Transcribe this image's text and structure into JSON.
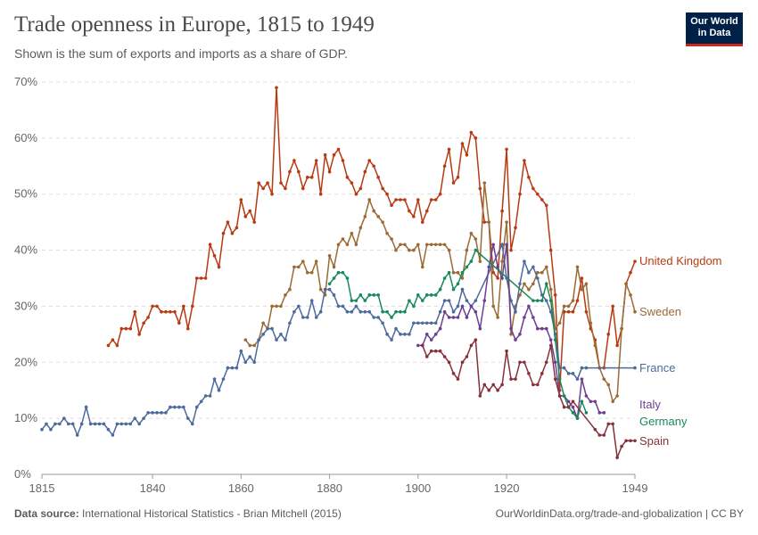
{
  "title": "Trade openness in Europe, 1815 to 1949",
  "subtitle": "Shown is the sum of exports and imports as a share of GDP.",
  "logo": "Our World in Data",
  "footer": {
    "source_label": "Data source:",
    "source": "International Historical Statistics - Brian Mitchell (2015)",
    "url": "OurWorldinData.org/trade-and-globalization | CC BY"
  },
  "chart_data": {
    "type": "line",
    "title": "Trade openness in Europe, 1815 to 1949",
    "xlabel": "",
    "ylabel": "",
    "xlim": [
      1815,
      1949
    ],
    "ylim": [
      0,
      70
    ],
    "x_ticks": [
      "1815",
      "1840",
      "1860",
      "1880",
      "1900",
      "1920",
      "1949"
    ],
    "y_ticks": [
      "0%",
      "10%",
      "20%",
      "30%",
      "40%",
      "50%",
      "60%",
      "70%"
    ],
    "grid": "horizontal dashed",
    "legend": "right (labels at line ends)",
    "series": [
      {
        "name": "United Kingdom",
        "color": "#b83a12",
        "segments": [
          {
            "start": 1830,
            "values": [
              23,
              24,
              23,
              26,
              26,
              26,
              29,
              25,
              27,
              28,
              30,
              30,
              29,
              29,
              29,
              29,
              27,
              30,
              26,
              30,
              35,
              35,
              35,
              41,
              39,
              37,
              43,
              45,
              43,
              44,
              49,
              46,
              47,
              45,
              52,
              51,
              52,
              50,
              69,
              52,
              51,
              54,
              56,
              54,
              51,
              53,
              53,
              56,
              50,
              57,
              54,
              57,
              58,
              56,
              53,
              52,
              50,
              51,
              54,
              56,
              55,
              53,
              51,
              50,
              48,
              49,
              49,
              49,
              47,
              46,
              49,
              45,
              47,
              49,
              49,
              50,
              55,
              58,
              52,
              53,
              59,
              57,
              61,
              60,
              51,
              45,
              45,
              36,
              35,
              47,
              58,
              40,
              44,
              50,
              56,
              53,
              51,
              50,
              49,
              48,
              40,
              32,
              15,
              29,
              29,
              29,
              31,
              35,
              29,
              26,
              24,
              19,
              19,
              25,
              30,
              23,
              26,
              34,
              36,
              38
            ]
          }
        ]
      },
      {
        "name": "Sweden",
        "color": "#9a6b34",
        "segments": [
          {
            "start": 1861,
            "values": [
              24,
              23,
              23,
              24,
              27,
              26,
              30,
              30,
              30,
              32,
              33,
              37,
              37,
              38,
              36,
              36,
              38,
              33,
              32,
              39,
              37,
              41,
              42,
              41,
              43,
              41,
              44,
              46,
              49,
              47,
              46,
              45,
              43,
              42,
              40,
              41,
              41,
              40,
              40,
              41,
              37,
              41,
              41,
              41,
              41,
              41,
              40,
              36,
              36,
              35,
              40,
              43,
              42,
              38,
              52,
              45,
              30,
              28,
              38,
              45,
              25,
              30,
              32,
              34,
              33,
              34,
              36,
              36,
              37,
              33,
              26,
              27,
              30,
              30,
              31,
              37,
              33,
              34,
              27,
              23,
              19,
              17,
              16,
              13,
              14,
              26,
              34,
              32,
              29
            ]
          }
        ]
      },
      {
        "name": "France",
        "color": "#4c6a9c",
        "segments": [
          {
            "start": 1815,
            "values": [
              8,
              9,
              8,
              9,
              9,
              10,
              9,
              9,
              7,
              9,
              12,
              9,
              9,
              9,
              9,
              8,
              7,
              9,
              9,
              9,
              9,
              10,
              9,
              10,
              11,
              11,
              11,
              11,
              11,
              12,
              12,
              12,
              12,
              10,
              9,
              12,
              13,
              14,
              14,
              17,
              15,
              17,
              19,
              19,
              19,
              22,
              20,
              21,
              20,
              24,
              25,
              26,
              26,
              24,
              25,
              24,
              27,
              29,
              30,
              28,
              28,
              31,
              28,
              29,
              33,
              33,
              32,
              30,
              30,
              29,
              29,
              30,
              29,
              29,
              29,
              28,
              28,
              27,
              25,
              24,
              26,
              25,
              25,
              25,
              27,
              27,
              27,
              27,
              27,
              27,
              29,
              31,
              31,
              29,
              30,
              33,
              31,
              30,
              31
            ]
          },
          {
            "start": 1919,
            "values": [
              41,
              35,
              31,
              29,
              34,
              38,
              36,
              37,
              35,
              32,
              31,
              29,
              25,
              19,
              19,
              18,
              18,
              17,
              19,
              19
            ]
          },
          {
            "start": 1949,
            "values": [
              19
            ]
          }
        ]
      },
      {
        "name": "Italy",
        "color": "#6d3e91",
        "segments": [
          {
            "start": 1900,
            "values": [
              23,
              23,
              25,
              24,
              25,
              26,
              29,
              28,
              28,
              28,
              30,
              28,
              30,
              29,
              26,
              31,
              37,
              41,
              37,
              35,
              41,
              26,
              24,
              25,
              28,
              30,
              28,
              26,
              26,
              26,
              24,
              20,
              14,
              14,
              13,
              12,
              10,
              17,
              14,
              13,
              13,
              11,
              11
            ]
          }
        ]
      },
      {
        "name": "Germany",
        "color": "#18895a",
        "segments": [
          {
            "start": 1880,
            "values": [
              34,
              35,
              36,
              36,
              35,
              31,
              31,
              32,
              31,
              32,
              32,
              32,
              29,
              29,
              28,
              29,
              29,
              29,
              31,
              30,
              32,
              31,
              32,
              32,
              32,
              33,
              35,
              36,
              33,
              34,
              36,
              37,
              38,
              40
            ]
          },
          {
            "start": 1926,
            "values": [
              31,
              31,
              31,
              34,
              31,
              24,
              17,
              14,
              12,
              11,
              10,
              13,
              11
            ]
          }
        ]
      },
      {
        "name": "Spain",
        "color": "#883039",
        "segments": [
          {
            "start": 1901,
            "values": [
              23,
              21,
              22,
              22,
              22,
              21,
              20,
              18,
              17,
              20,
              21,
              23,
              24,
              14,
              16,
              15,
              16,
              15,
              16,
              22,
              17,
              17,
              20,
              20,
              18,
              16,
              16,
              18,
              20,
              23,
              17,
              14,
              12,
              12,
              13
            ]
          },
          {
            "start": 1940,
            "values": [
              8,
              7,
              7,
              9,
              9,
              3,
              5,
              6,
              6,
              6
            ]
          }
        ]
      }
    ]
  }
}
